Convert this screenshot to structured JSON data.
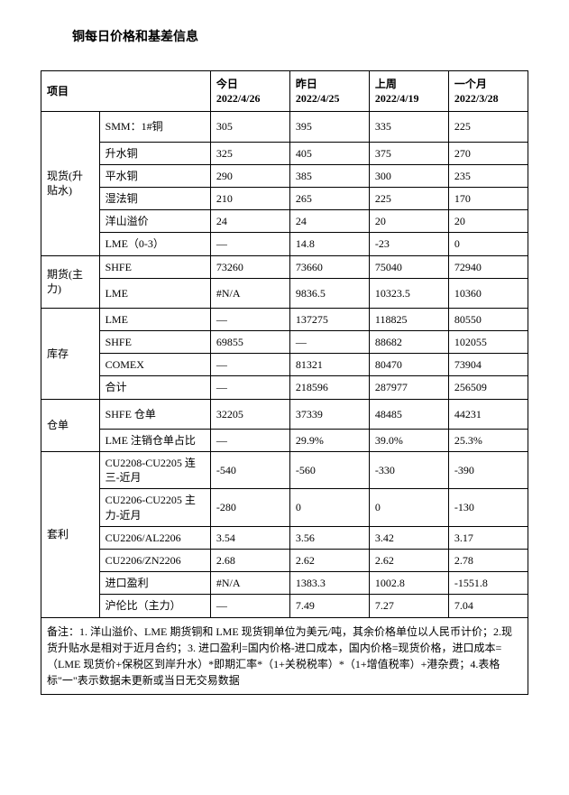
{
  "title": "铜每日价格和基差信息",
  "columns": {
    "item": "项目",
    "today_label": "今日",
    "today_date": "2022/4/26",
    "yesterday_label": "昨日",
    "yesterday_date": "2022/4/25",
    "lastweek_label": "上周",
    "lastweek_date": "2022/4/19",
    "month_label": "一个月",
    "month_date": "2022/3/28"
  },
  "groups": {
    "spot": "现货(升贴水)",
    "futures": "期货(主力)",
    "inventory": "库存",
    "warrant": "仓单",
    "arbitrage": "套利"
  },
  "spot": {
    "smm": {
      "label": "SMM：1#铜",
      "today": "305",
      "yesterday": "395",
      "lastweek": "335",
      "month": "225"
    },
    "up": {
      "label": "升水铜",
      "today": "325",
      "yesterday": "405",
      "lastweek": "375",
      "month": "270"
    },
    "flat": {
      "label": "平水铜",
      "today": "290",
      "yesterday": "385",
      "lastweek": "300",
      "month": "235"
    },
    "wet": {
      "label": "湿法铜",
      "today": "210",
      "yesterday": "265",
      "lastweek": "225",
      "month": "170"
    },
    "yang": {
      "label": "洋山溢价",
      "today": "24",
      "yesterday": "24",
      "lastweek": "20",
      "month": "20"
    },
    "lme03": {
      "label": "LME（0-3）",
      "today": "—",
      "yesterday": "14.8",
      "lastweek": "-23",
      "month": "0"
    }
  },
  "futures": {
    "shfe": {
      "label": "SHFE",
      "today": "73260",
      "yesterday": "73660",
      "lastweek": "75040",
      "month": "72940"
    },
    "lme": {
      "label": "LME",
      "today": "#N/A",
      "yesterday": "9836.5",
      "lastweek": "10323.5",
      "month": "10360"
    }
  },
  "inventory": {
    "lme": {
      "label": "LME",
      "today": "—",
      "yesterday": "137275",
      "lastweek": "118825",
      "month": "80550"
    },
    "shfe": {
      "label": "SHFE",
      "today": "69855",
      "yesterday": "—",
      "lastweek": "88682",
      "month": "102055"
    },
    "comex": {
      "label": "COMEX",
      "today": "—",
      "yesterday": "81321",
      "lastweek": "80470",
      "month": "73904"
    },
    "total": {
      "label": "合计",
      "today": "—",
      "yesterday": "218596",
      "lastweek": "287977",
      "month": "256509"
    }
  },
  "warrant": {
    "shfe": {
      "label": "SHFE 仓单",
      "today": "32205",
      "yesterday": "37339",
      "lastweek": "48485",
      "month": "44231"
    },
    "lmecan": {
      "label": "LME 注销仓单占比",
      "today": "—",
      "yesterday": "29.9%",
      "lastweek": "39.0%",
      "month": "25.3%"
    }
  },
  "arbitrage": {
    "cu2208": {
      "label": "CU2208-CU2205 连三-近月",
      "today": "-540",
      "yesterday": "-560",
      "lastweek": "-330",
      "month": "-390"
    },
    "cu2206": {
      "label": "CU2206-CU2205 主力-近月",
      "today": "-280",
      "yesterday": "0",
      "lastweek": "0",
      "month": "-130"
    },
    "cual": {
      "label": "CU2206/AL2206",
      "today": "3.54",
      "yesterday": "3.56",
      "lastweek": "3.42",
      "month": "3.17"
    },
    "cuzn": {
      "label": "CU2206/ZN2206",
      "today": "2.68",
      "yesterday": "2.62",
      "lastweek": "2.62",
      "month": "2.78"
    },
    "import": {
      "label": "进口盈利",
      "today": "#N/A",
      "yesterday": "1383.3",
      "lastweek": "1002.8",
      "month": "-1551.8"
    },
    "ratio": {
      "label": "沪伦比（主力）",
      "today": "—",
      "yesterday": "7.49",
      "lastweek": "7.27",
      "month": "7.04"
    }
  },
  "footnote": "备注：1. 洋山溢价、LME 期货铜和 LME 现货铜单位为美元/吨，其余价格单位以人民币计价；2.现货升贴水是相对于近月合约；3. 进口盈利=国内价格-进口成本，国内价格=现货价格，进口成本=（LME 现货价+保税区到岸升水）*即期汇率*（1+关税税率）*（1+增值税率）+港杂费；4.表格标\"一\"表示数据未更新或当日无交易数据"
}
